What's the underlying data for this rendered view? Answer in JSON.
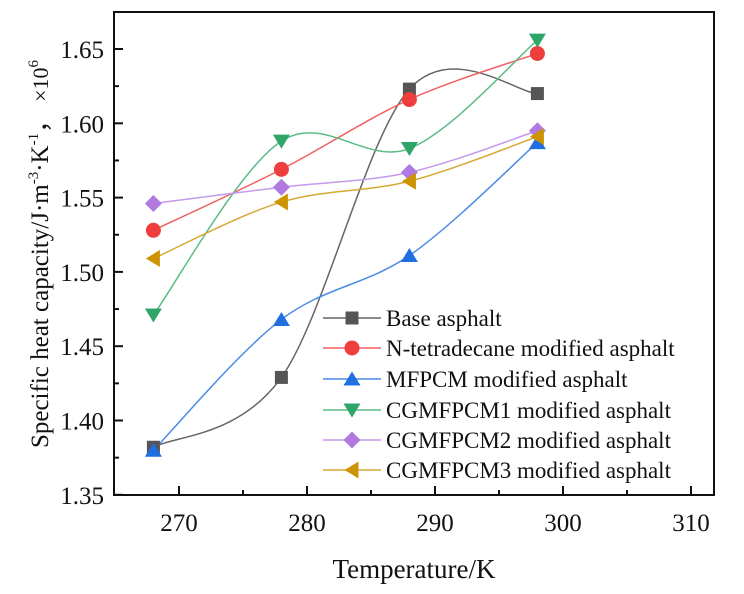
{
  "chart_data": {
    "type": "line",
    "title": "",
    "xlabel": "Temperature/K",
    "ylabel": "Specific heat capacity/J·m",
    "ylabel_sup1": "-3",
    "ylabel_mid": "·K",
    "ylabel_sup2": "-1",
    "ylabel_tail": "，",
    "y_multiplier": "×10",
    "y_multiplier_exp": "6",
    "xlim": [
      264.9,
      311.7
    ],
    "ylim": [
      1.35,
      1.665
    ],
    "xticks": [
      270,
      280,
      290,
      300,
      310
    ],
    "xtick_labels": [
      "270",
      "280",
      "290",
      "300",
      "310"
    ],
    "yticks": [
      1.35,
      1.4,
      1.45,
      1.5,
      1.55,
      1.6,
      1.65
    ],
    "ytick_labels": [
      "1.35",
      "1.40",
      "1.45",
      "1.50",
      "1.55",
      "1.60",
      "1.65"
    ],
    "grid": false,
    "legend_position": "bottom-right",
    "x": [
      268,
      278,
      288,
      298
    ],
    "series": [
      {
        "name": "Base asphalt",
        "values": [
          1.382,
          1.429,
          1.623,
          1.62
        ],
        "color": "#555555",
        "line_color": "#666666",
        "marker": "square"
      },
      {
        "name": "N-tetradecane modified asphalt",
        "values": [
          1.528,
          1.569,
          1.616,
          1.647
        ],
        "color": "#ef3e3e",
        "line_color": "#f06060",
        "marker": "circle"
      },
      {
        "name": "MFPCM modified asphalt",
        "values": [
          1.38,
          1.468,
          1.511,
          1.587
        ],
        "color": "#1f6fe0",
        "line_color": "#4a8be6",
        "marker": "triangle-up"
      },
      {
        "name": "CGMFPCM1 modified asphalt",
        "values": [
          1.471,
          1.588,
          1.583,
          1.656
        ],
        "color": "#2ea66a",
        "line_color": "#5cbb86",
        "marker": "triangle-down"
      },
      {
        "name": "CGMFPCM2 modified asphalt",
        "values": [
          1.546,
          1.557,
          1.567,
          1.595
        ],
        "color": "#b07ae0",
        "line_color": "#c49aea",
        "marker": "diamond"
      },
      {
        "name": "CGMFPCM3 modified asphalt",
        "values": [
          1.509,
          1.547,
          1.561,
          1.591
        ],
        "color": "#cc9400",
        "line_color": "#d7a733",
        "marker": "triangle-left"
      }
    ]
  }
}
